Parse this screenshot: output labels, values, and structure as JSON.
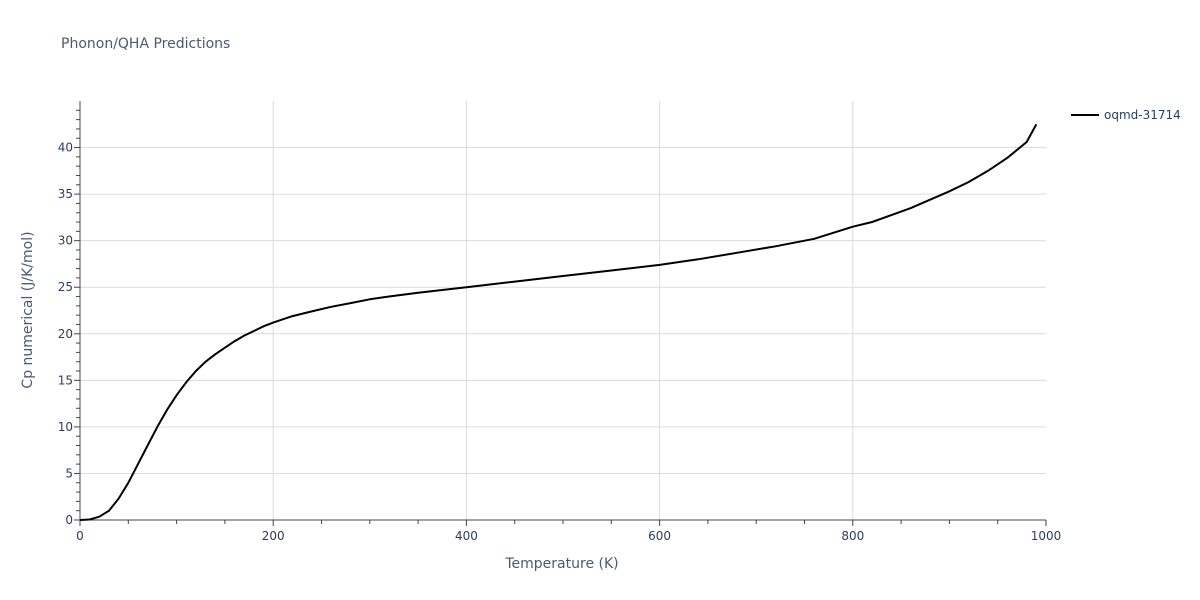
{
  "chart_data": {
    "type": "line",
    "title": "Phonon/QHA Predictions",
    "xlabel": "Temperature (K)",
    "ylabel": "Cp numerical (J/K/mol)",
    "xlim": [
      0,
      1000
    ],
    "ylim": [
      0,
      45
    ],
    "xticks": [
      0,
      200,
      400,
      600,
      800,
      1000
    ],
    "yticks": [
      0,
      5,
      10,
      15,
      20,
      25,
      30,
      35,
      40
    ],
    "grid": true,
    "legend_position": "top-right",
    "series": [
      {
        "name": "oqmd-31714",
        "color": "#000000",
        "x": [
          0,
          10,
          20,
          30,
          40,
          50,
          60,
          70,
          80,
          90,
          100,
          110,
          120,
          130,
          140,
          150,
          160,
          170,
          180,
          190,
          200,
          220,
          240,
          260,
          280,
          300,
          320,
          350,
          400,
          450,
          500,
          550,
          600,
          640,
          680,
          720,
          760,
          800,
          820,
          860,
          880,
          900,
          920,
          940,
          960,
          980,
          990
        ],
        "y": [
          0,
          0.05,
          0.35,
          1.0,
          2.3,
          4.0,
          6.0,
          8.0,
          10.0,
          11.8,
          13.4,
          14.8,
          16.0,
          17.0,
          17.8,
          18.5,
          19.2,
          19.8,
          20.3,
          20.8,
          21.2,
          21.9,
          22.4,
          22.9,
          23.3,
          23.7,
          24.0,
          24.4,
          25.0,
          25.6,
          26.2,
          26.8,
          27.4,
          28.0,
          28.7,
          29.4,
          30.2,
          31.5,
          32.0,
          33.5,
          34.4,
          35.3,
          36.3,
          37.5,
          38.9,
          40.6,
          42.5
        ]
      }
    ]
  }
}
